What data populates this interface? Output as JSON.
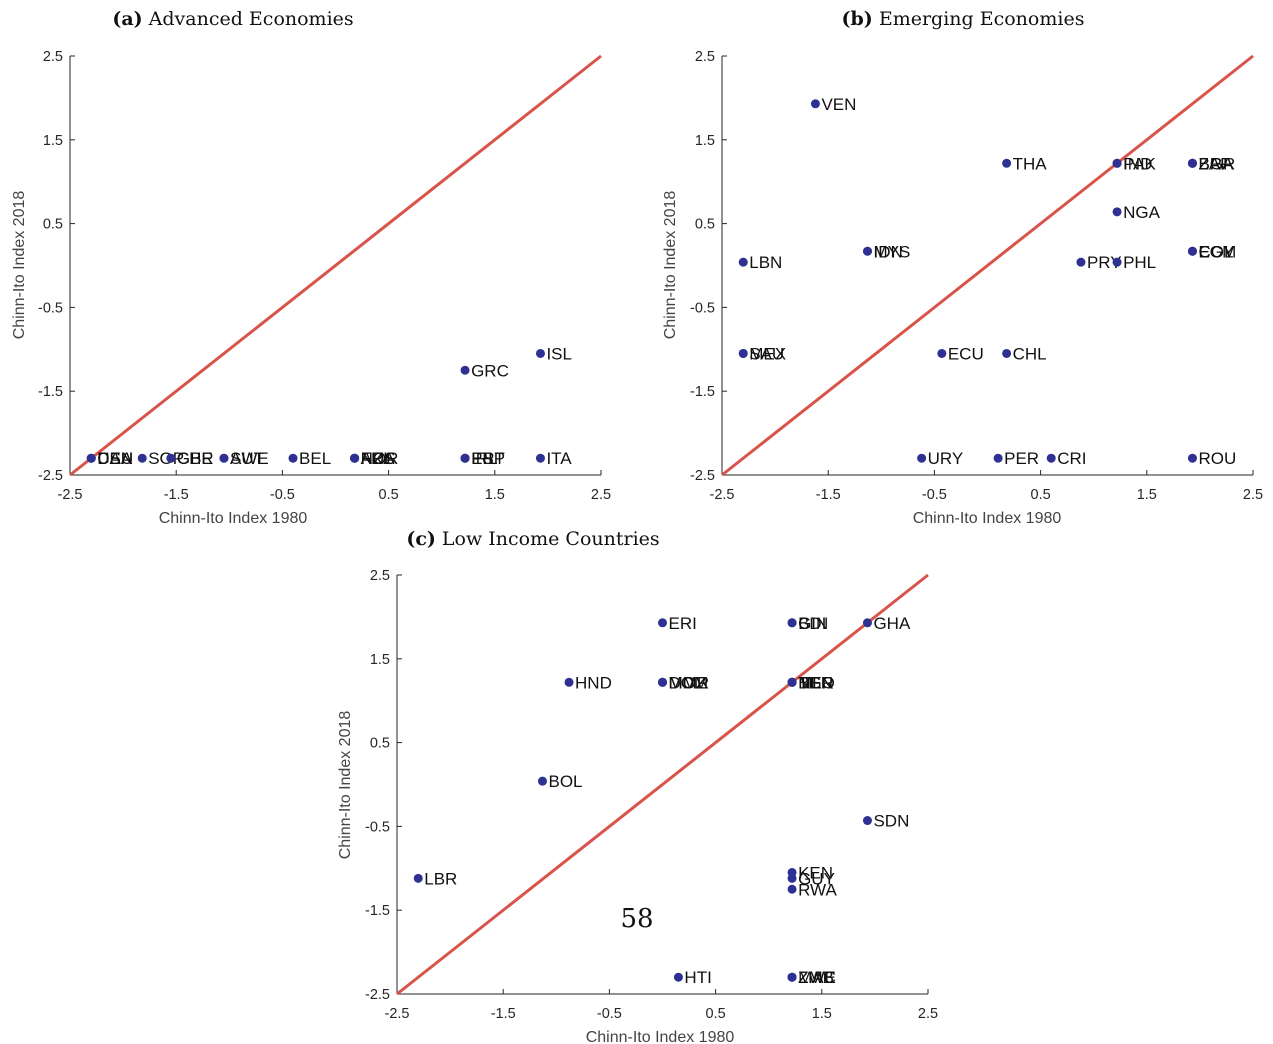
{
  "page_number": "58",
  "chart_data": [
    {
      "type": "scatter",
      "panel_tag": "(a)",
      "title": "Advanced Economies",
      "xlabel": "Chinn-Ito Index 1980",
      "ylabel": "Chinn-Ito Index 2018",
      "xlim": [
        -2.5,
        2.5
      ],
      "ylim": [
        -2.5,
        2.5
      ],
      "xticks": [
        "-2.5",
        "-1.5",
        "-0.5",
        "0.5",
        "1.5",
        "2.5"
      ],
      "yticks": [
        "-2.5",
        "-1.5",
        "-0.5",
        "0.5",
        "1.5",
        "2.5"
      ],
      "grid": false,
      "reference_line": "45-degree",
      "colors": {
        "points": "#2e3191",
        "line": "#d9534a"
      },
      "points": [
        {
          "label": "USA",
          "x": -2.3,
          "y": -2.3
        },
        {
          "label": "DEU",
          "x": -2.3,
          "y": -2.3
        },
        {
          "label": "CAN",
          "x": -2.3,
          "y": -2.3
        },
        {
          "label": "SGP",
          "x": -1.82,
          "y": -2.3
        },
        {
          "label": "GBR",
          "x": -1.55,
          "y": -2.3
        },
        {
          "label": "CHE",
          "x": -1.55,
          "y": -2.3
        },
        {
          "label": "AUT",
          "x": -1.05,
          "y": -2.3
        },
        {
          "label": "SWE",
          "x": -1.05,
          "y": -2.3
        },
        {
          "label": "BEL",
          "x": -0.4,
          "y": -2.3
        },
        {
          "label": "FRA",
          "x": 0.18,
          "y": -2.3
        },
        {
          "label": "NOR",
          "x": 0.18,
          "y": -2.3
        },
        {
          "label": "AUS",
          "x": 0.18,
          "y": -2.3
        },
        {
          "label": "NZL",
          "x": 0.18,
          "y": -2.3
        },
        {
          "label": "PRT",
          "x": 1.22,
          "y": -2.3
        },
        {
          "label": "ESP",
          "x": 1.22,
          "y": -2.3
        },
        {
          "label": "IRL",
          "x": 1.22,
          "y": -2.3
        },
        {
          "label": "ITA",
          "x": 1.93,
          "y": -2.3
        },
        {
          "label": "GRC",
          "x": 1.22,
          "y": -1.25
        },
        {
          "label": "ISL",
          "x": 1.93,
          "y": -1.05
        }
      ]
    },
    {
      "type": "scatter",
      "panel_tag": "(b)",
      "title": "Emerging Economies",
      "xlabel": "Chinn-Ito Index 1980",
      "ylabel": "Chinn-Ito Index 2018",
      "xlim": [
        -2.5,
        2.5
      ],
      "ylim": [
        -2.5,
        2.5
      ],
      "xticks": [
        "-2.5",
        "-1.5",
        "-0.5",
        "0.5",
        "1.5",
        "2.5"
      ],
      "yticks": [
        "-2.5",
        "-1.5",
        "-0.5",
        "0.5",
        "1.5",
        "2.5"
      ],
      "grid": false,
      "reference_line": "45-degree",
      "colors": {
        "points": "#2e3191",
        "line": "#d9534a"
      },
      "points": [
        {
          "label": "VEN",
          "x": -1.62,
          "y": 1.93
        },
        {
          "label": "THA",
          "x": 0.18,
          "y": 1.22
        },
        {
          "label": "IND",
          "x": 1.22,
          "y": 1.22
        },
        {
          "label": "PAK",
          "x": 1.22,
          "y": 1.22
        },
        {
          "label": "BGR",
          "x": 1.93,
          "y": 1.22
        },
        {
          "label": "ZAF",
          "x": 1.93,
          "y": 1.22
        },
        {
          "label": "BRA",
          "x": 1.93,
          "y": 1.22
        },
        {
          "label": "NGA",
          "x": 1.22,
          "y": 0.64
        },
        {
          "label": "IDN",
          "x": -1.13,
          "y": 0.17
        },
        {
          "label": "MYS",
          "x": -1.13,
          "y": 0.17
        },
        {
          "label": "ECM",
          "x": 1.93,
          "y": 0.17
        },
        {
          "label": "COL",
          "x": 1.93,
          "y": 0.17
        },
        {
          "label": "EGY",
          "x": 1.93,
          "y": 0.17
        },
        {
          "label": "LBN",
          "x": -2.3,
          "y": 0.04
        },
        {
          "label": "PRY",
          "x": 0.88,
          "y": 0.04
        },
        {
          "label": "PHL",
          "x": 1.22,
          "y": 0.04
        },
        {
          "label": "SAU",
          "x": -2.3,
          "y": -1.05
        },
        {
          "label": "MEX",
          "x": -2.3,
          "y": -1.05
        },
        {
          "label": "ECU",
          "x": -0.43,
          "y": -1.05
        },
        {
          "label": "CHL",
          "x": 0.18,
          "y": -1.05
        },
        {
          "label": "URY",
          "x": -0.62,
          "y": -2.3
        },
        {
          "label": "PER",
          "x": 0.1,
          "y": -2.3
        },
        {
          "label": "CRI",
          "x": 0.6,
          "y": -2.3
        },
        {
          "label": "ROU",
          "x": 1.93,
          "y": -2.3
        }
      ]
    },
    {
      "type": "scatter",
      "panel_tag": "(c)",
      "title": "Low Income Countries",
      "xlabel": "Chinn-Ito Index 1980",
      "ylabel": "Chinn-Ito Index 2018",
      "xlim": [
        -2.5,
        2.5
      ],
      "ylim": [
        -2.5,
        2.5
      ],
      "xticks": [
        "-2.5",
        "-1.5",
        "-0.5",
        "0.5",
        "1.5",
        "2.5"
      ],
      "yticks": [
        "-2.5",
        "-1.5",
        "-0.5",
        "0.5",
        "1.5",
        "2.5"
      ],
      "grid": false,
      "reference_line": "45-degree",
      "colors": {
        "points": "#2e3191",
        "line": "#d9534a"
      },
      "points": [
        {
          "label": "ERI",
          "x": 0.0,
          "y": 1.93
        },
        {
          "label": "GIN",
          "x": 1.22,
          "y": 1.93
        },
        {
          "label": "BDI",
          "x": 1.22,
          "y": 1.93
        },
        {
          "label": "GHA",
          "x": 1.93,
          "y": 1.93
        },
        {
          "label": "HND",
          "x": -0.88,
          "y": 1.22
        },
        {
          "label": "MOZ",
          "x": 0.0,
          "y": 1.22
        },
        {
          "label": "DOM",
          "x": 0.0,
          "y": 1.22
        },
        {
          "label": "MMR",
          "x": 0.0,
          "y": 1.22
        },
        {
          "label": "BEN",
          "x": 1.22,
          "y": 1.22
        },
        {
          "label": "MLI",
          "x": 1.22,
          "y": 1.22
        },
        {
          "label": "NER",
          "x": 1.22,
          "y": 1.22
        },
        {
          "label": "TGO",
          "x": 1.22,
          "y": 1.22
        },
        {
          "label": "BOL",
          "x": -1.13,
          "y": 0.04
        },
        {
          "label": "SDN",
          "x": 1.93,
          "y": -0.43
        },
        {
          "label": "KEN",
          "x": 1.22,
          "y": -1.05
        },
        {
          "label": "GUY",
          "x": 1.22,
          "y": -1.12
        },
        {
          "label": "RWA",
          "x": 1.22,
          "y": -1.25
        },
        {
          "label": "LBR",
          "x": -2.3,
          "y": -1.12
        },
        {
          "label": "HTI",
          "x": 0.15,
          "y": -2.3
        },
        {
          "label": "ZWE",
          "x": 1.22,
          "y": -2.3
        },
        {
          "label": "ZMB",
          "x": 1.22,
          "y": -2.3
        },
        {
          "label": "MAC",
          "x": 1.22,
          "y": -2.3
        }
      ]
    }
  ]
}
